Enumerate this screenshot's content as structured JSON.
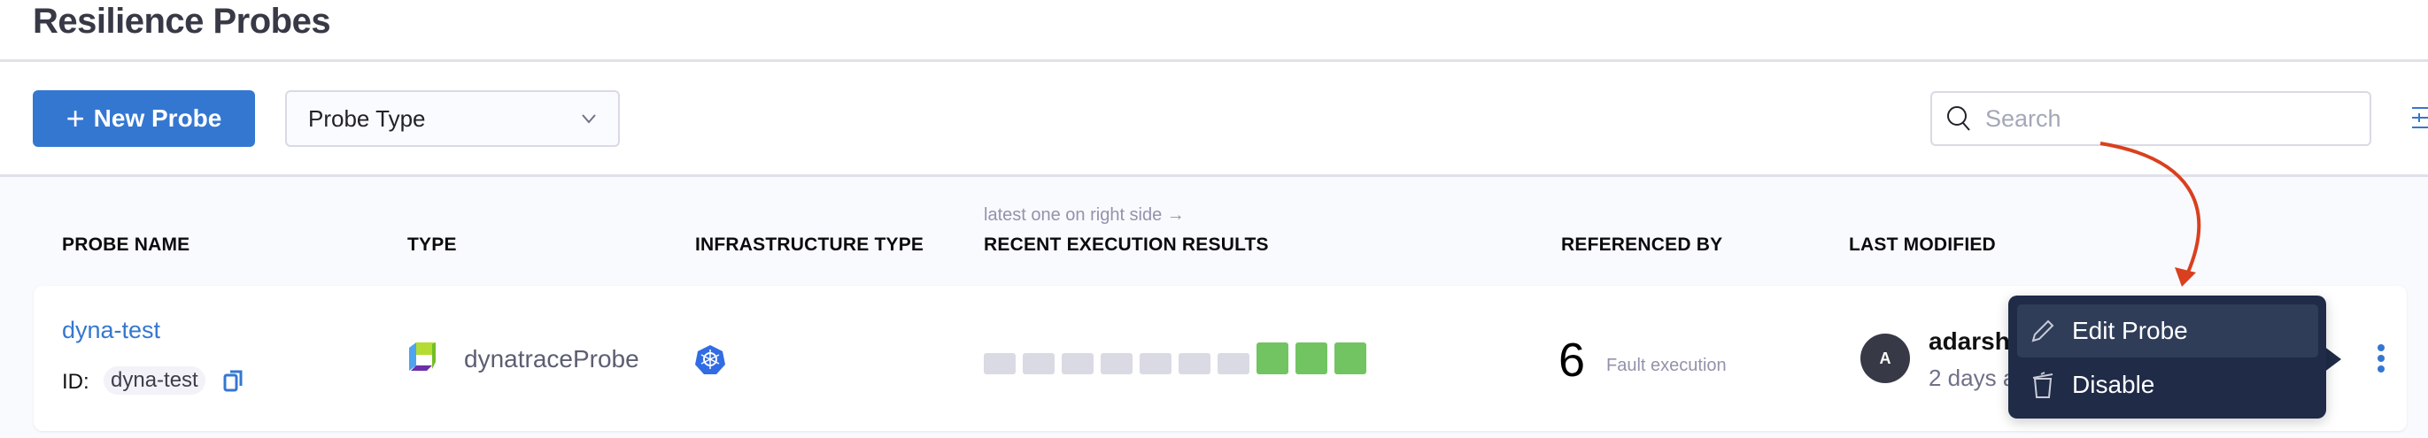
{
  "page": {
    "title": "Resilience Probes"
  },
  "toolbar": {
    "new_probe_label": "New Probe",
    "probe_type_label": "Probe Type",
    "search_placeholder": "Search"
  },
  "table": {
    "hint": "latest one on right side →",
    "columns": [
      "PROBE NAME",
      "TYPE",
      "INFRASTRUCTURE TYPE",
      "RECENT EXECUTION RESULTS",
      "REFERENCED BY",
      "LAST MODIFIED"
    ],
    "rows": [
      {
        "name": "dyna-test",
        "id_label": "ID:",
        "id": "dyna-test",
        "type": "dynatraceProbe",
        "infrastructure_icon": "kubernetes-icon",
        "recent_results": [
          "none",
          "none",
          "none",
          "none",
          "none",
          "none",
          "none",
          "passed",
          "passed",
          "passed"
        ],
        "referenced_count": "6",
        "referenced_label": "Fault execution",
        "avatar_initial": "A",
        "modified_by": "adarsh",
        "modified_time": "2 days ago"
      }
    ]
  },
  "context_menu": {
    "items": [
      {
        "label": "Edit Probe",
        "icon": "pencil-icon"
      },
      {
        "label": "Disable",
        "icon": "trash-icon"
      }
    ]
  },
  "colors": {
    "accent": "#3477d1",
    "passed": "#72c462",
    "none": "#dadae4",
    "menu_bg": "#1f2b47",
    "annotation": "#d9401f"
  }
}
